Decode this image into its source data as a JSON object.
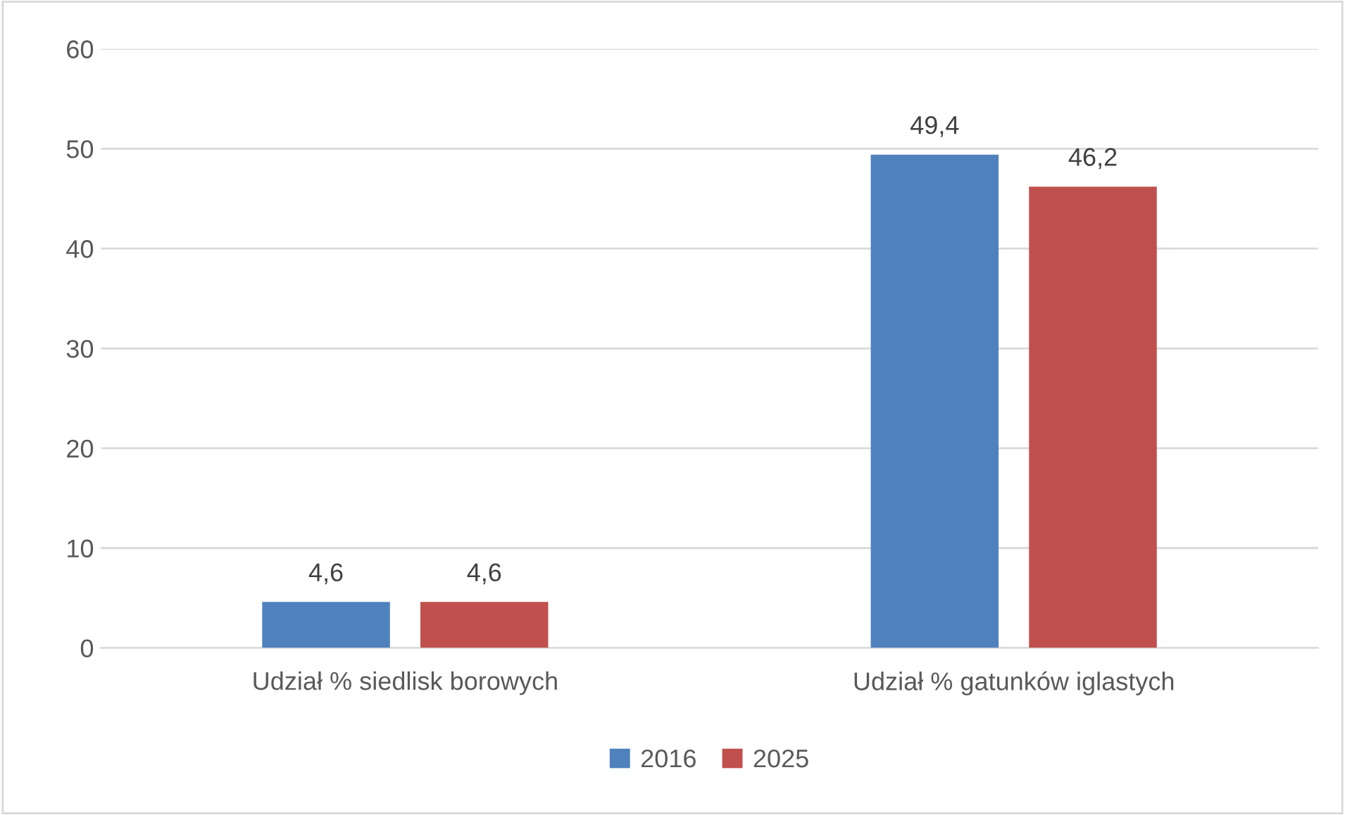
{
  "chart_data": {
    "type": "bar",
    "categories": [
      "Udział % siedlisk borowych",
      "Udział % gatunków iglastych"
    ],
    "series": [
      {
        "name": "2016",
        "color": "#4f81bd",
        "values": [
          4.6,
          49.4
        ],
        "value_labels": [
          "4,6",
          "49,4"
        ]
      },
      {
        "name": "2025",
        "color": "#c0504d",
        "values": [
          4.6,
          46.2
        ],
        "value_labels": [
          "4,6",
          "46,2"
        ]
      }
    ],
    "ylim": [
      0,
      60
    ],
    "yticks": [
      0,
      10,
      20,
      30,
      40,
      50,
      60
    ],
    "grid": "y",
    "legend": "bottom"
  }
}
